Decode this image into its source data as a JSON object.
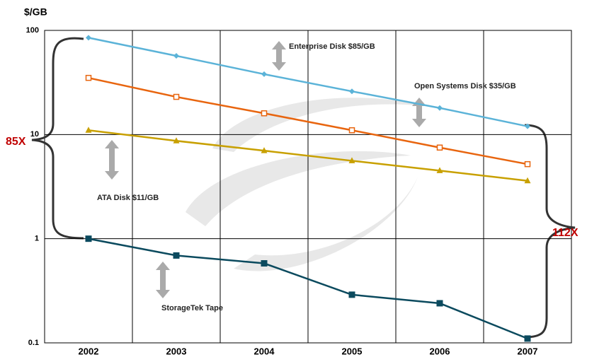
{
  "chart_data": {
    "type": "line",
    "y_label": "$/GB",
    "log_scale": true,
    "categories": [
      "2002",
      "2003",
      "2004",
      "2005",
      "2006",
      "2007"
    ],
    "ylim": [
      0.1,
      100
    ],
    "yticks": [
      0.1,
      1,
      10,
      100
    ],
    "grid": true,
    "series": [
      {
        "name": "Enterprise Disk $85/GB",
        "color": "#5bb3d8",
        "marker": "diamond",
        "values": [
          85,
          57,
          38,
          26,
          18,
          12
        ]
      },
      {
        "name": "Open Systems Disk $35/GB",
        "color": "#e8650f",
        "marker": "open-square",
        "values": [
          35,
          23,
          16,
          11,
          7.5,
          5.2
        ]
      },
      {
        "name": "ATA Disk $11/GB",
        "color": "#c8a000",
        "marker": "triangle",
        "values": [
          11,
          8.7,
          7,
          5.6,
          4.5,
          3.6
        ]
      },
      {
        "name": "StorageTek Tape",
        "color": "#0b4a5e",
        "marker": "square",
        "values": [
          1,
          0.69,
          0.58,
          0.29,
          0.24,
          0.11
        ]
      }
    ],
    "annotations": [
      "85X",
      "112X"
    ]
  }
}
